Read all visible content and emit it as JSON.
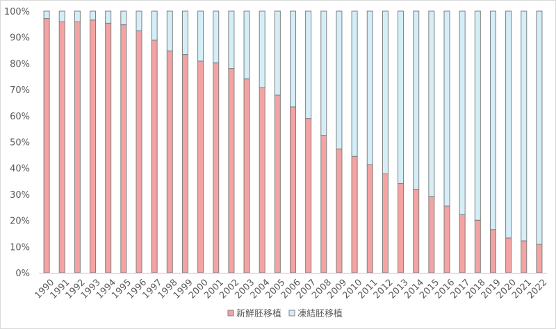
{
  "chart_data": {
    "type": "bar",
    "stacked": true,
    "percent": true,
    "categories": [
      "1990",
      "1991",
      "1992",
      "1993",
      "1994",
      "1995",
      "1996",
      "1997",
      "1998",
      "1999",
      "2000",
      "2001",
      "2002",
      "2003",
      "2004",
      "2005",
      "2006",
      "2007",
      "2008",
      "2009",
      "2010",
      "2011",
      "2012",
      "2013",
      "2014",
      "2015",
      "2016",
      "2017",
      "2018",
      "2019",
      "2020",
      "2021",
      "2022"
    ],
    "series": [
      {
        "name": "新鮮胚移植",
        "color": "#f4a3a3",
        "values": [
          97.2,
          95.9,
          95.9,
          96.6,
          95.4,
          94.8,
          92.5,
          88.9,
          84.8,
          83.4,
          80.9,
          80.2,
          78.1,
          74.1,
          70.7,
          67.9,
          63.4,
          59.0,
          52.4,
          47.3,
          44.5,
          41.3,
          37.8,
          34.1,
          31.9,
          29.1,
          25.5,
          22.2,
          20.1,
          16.5,
          13.3,
          12.2,
          10.9
        ]
      },
      {
        "name": "凍結胚移植",
        "color": "#d4eef8",
        "values": [
          2.8,
          4.1,
          4.1,
          3.4,
          4.6,
          5.2,
          7.5,
          11.1,
          15.2,
          16.6,
          19.1,
          19.8,
          21.9,
          25.9,
          29.3,
          32.1,
          36.6,
          41.0,
          47.6,
          52.7,
          55.5,
          58.7,
          62.2,
          65.9,
          68.1,
          70.9,
          74.5,
          77.8,
          79.9,
          83.5,
          86.7,
          87.8,
          89.1
        ]
      }
    ],
    "yticks": [
      "0%",
      "10%",
      "20%",
      "30%",
      "40%",
      "50%",
      "60%",
      "70%",
      "80%",
      "90%",
      "100%"
    ],
    "ylim": [
      0,
      100
    ],
    "grid": false,
    "legend_position": "bottom-center",
    "bar_outline_color": "#7f7f7f",
    "axis_text_color": "#595959"
  }
}
